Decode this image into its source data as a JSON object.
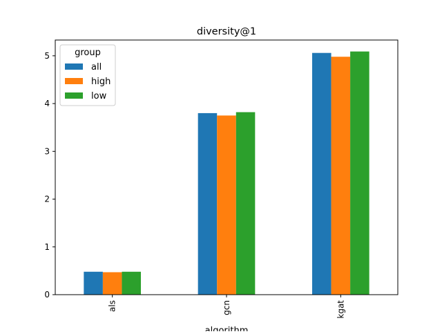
{
  "chart_data": {
    "type": "bar",
    "title": "diversity@1",
    "xlabel": "algorithm",
    "ylabel": "",
    "categories": [
      "als",
      "gcn",
      "kgat"
    ],
    "series": [
      {
        "name": "all",
        "color": "#1f77b4",
        "values": [
          0.48,
          3.8,
          5.06
        ]
      },
      {
        "name": "high",
        "color": "#ff7f0e",
        "values": [
          0.47,
          3.75,
          4.98
        ]
      },
      {
        "name": "low",
        "color": "#2ca02c",
        "values": [
          0.48,
          3.82,
          5.09
        ]
      }
    ],
    "ylim": [
      0,
      5.33
    ],
    "yticks": [
      "0",
      "1",
      "2",
      "3",
      "4",
      "5"
    ],
    "legend": {
      "title": "group",
      "placement": "top-left"
    },
    "grid": false
  }
}
